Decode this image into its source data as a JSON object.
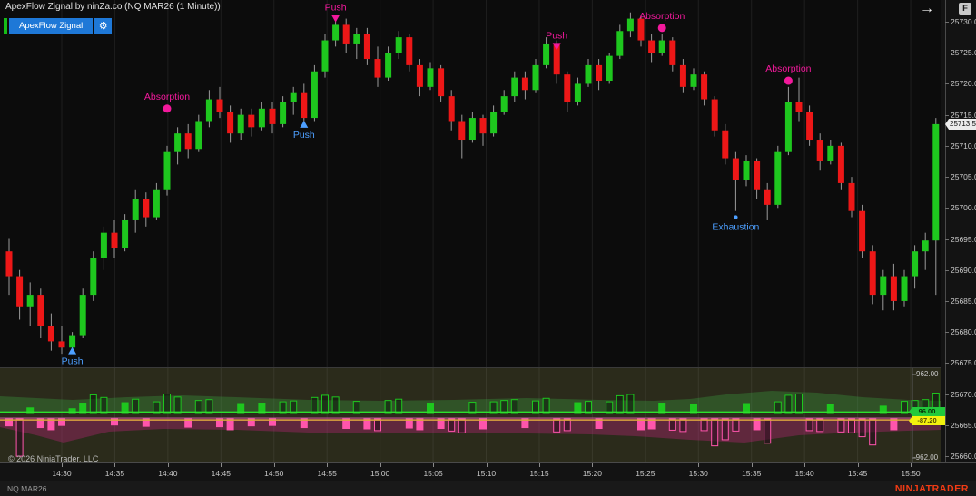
{
  "window": {
    "title": "ApexFlow Zignal by ninZa.co (NQ MAR26 (1 Minute))",
    "arrow_icon": "→",
    "fixed_scale_button": "F"
  },
  "toolbar": {
    "indicator_button": "ApexFlow Zignal",
    "gear_icon": "⚙"
  },
  "footer_note": "© 2026 NinjaTrader, LLC",
  "status_bar": {
    "instrument": "NQ MAR26",
    "brand": "NINJATRADER",
    "brand_color": "#F23B14"
  },
  "price_axis": {
    "ticks": [
      "25730.00",
      "25725.00",
      "25720.00",
      "25715.00",
      "25710.00",
      "25705.00",
      "25700.00",
      "25695.00",
      "25690.00",
      "25685.00",
      "25680.00",
      "25675.00",
      "25670.00",
      "25665.00",
      "25660.00"
    ],
    "last_price_label": "25713.50"
  },
  "time_axis": {
    "ticks": [
      "14:30",
      "14:35",
      "14:40",
      "14:45",
      "14:50",
      "14:55",
      "15:00",
      "15:05",
      "15:10",
      "15:15",
      "15:20",
      "15:25",
      "15:30",
      "15:35",
      "15:40",
      "15:45",
      "15:50"
    ]
  },
  "lower_panel": {
    "scale_max_label": "962.00",
    "scale_min_label": "-962.00",
    "green_value_label": "96.00",
    "yellow_value_label": "-87.20"
  },
  "chart_data": {
    "type": "candlestick",
    "title": "ApexFlow Zignal by ninZa.co",
    "instrument": "NQ MAR26",
    "interval": "1 Minute",
    "first_bar_time": "14:25",
    "price_range": [
      25660,
      25730
    ],
    "lower_range": [
      -962,
      962
    ],
    "colors": {
      "up": "#1EC71E",
      "down": "#ED1717",
      "pink": "#FF55AC",
      "blue": "#4D9FFF",
      "magenta": "#F3199C",
      "green_line": "#2DE12D",
      "orange_line": "#DCA43F"
    },
    "candles": [
      [
        25693,
        25695,
        25686,
        25689
      ],
      [
        25689,
        25690,
        25682,
        25684
      ],
      [
        25684,
        25688,
        25681,
        25686
      ],
      [
        25686,
        25687,
        25679,
        25681
      ],
      [
        25681,
        25683,
        25677,
        25678.5
      ],
      [
        25678.5,
        25681,
        25676.5,
        25677.5
      ],
      [
        25677.5,
        25680,
        25676.75,
        25679.5
      ],
      [
        25679.5,
        25687,
        25679,
        25686
      ],
      [
        25686,
        25693,
        25685,
        25692
      ],
      [
        25692,
        25697,
        25690,
        25696
      ],
      [
        25696,
        25698,
        25692,
        25693.5
      ],
      [
        25693.5,
        25699,
        25693,
        25698
      ],
      [
        25698,
        25703,
        25696,
        25701.5
      ],
      [
        25701.5,
        25702.5,
        25697,
        25698.5
      ],
      [
        25698.5,
        25704,
        25698,
        25703
      ],
      [
        25703,
        25710,
        25702,
        25709
      ],
      [
        25709,
        25713,
        25707,
        25712
      ],
      [
        25712,
        25713.5,
        25708,
        25709.5
      ],
      [
        25709.5,
        25715,
        25709,
        25714
      ],
      [
        25714,
        25719,
        25713,
        25717.5
      ],
      [
        25717.5,
        25719.5,
        25714.5,
        25715.5
      ],
      [
        25715.5,
        25716.5,
        25710.5,
        25712
      ],
      [
        25712,
        25716,
        25711,
        25715
      ],
      [
        25715,
        25716,
        25711.5,
        25713
      ],
      [
        25713,
        25717,
        25712.5,
        25716
      ],
      [
        25716,
        25717,
        25712,
        25713.5
      ],
      [
        25713.5,
        25718,
        25713,
        25717
      ],
      [
        25717,
        25719.5,
        25715,
        25718.5
      ],
      [
        25718.5,
        25720,
        25713,
        25714.5
      ],
      [
        25714.5,
        25723,
        25714,
        25722
      ],
      [
        25722,
        25728,
        25721,
        25727
      ],
      [
        25727,
        25731,
        25726,
        25729.5
      ],
      [
        25729.5,
        25730.5,
        25725,
        25726.5
      ],
      [
        25726.5,
        25729,
        25724,
        25728
      ],
      [
        25728,
        25729,
        25723,
        25724
      ],
      [
        25724,
        25726,
        25719.5,
        25721
      ],
      [
        25721,
        25726,
        25720.5,
        25725
      ],
      [
        25725,
        25728.5,
        25724,
        25727.5
      ],
      [
        25727.5,
        25728,
        25722,
        25723
      ],
      [
        25723,
        25724,
        25718,
        25719.5
      ],
      [
        25719.5,
        25723.5,
        25719,
        25722.5
      ],
      [
        25722.5,
        25723,
        25717,
        25718
      ],
      [
        25718,
        25719,
        25712.5,
        25714
      ],
      [
        25714,
        25715,
        25708,
        25711
      ],
      [
        25711,
        25715.5,
        25710.5,
        25714.5
      ],
      [
        25714.5,
        25715,
        25710,
        25712
      ],
      [
        25712,
        25716.5,
        25711.5,
        25715.5
      ],
      [
        25715.5,
        25719,
        25715,
        25718
      ],
      [
        25718,
        25722,
        25717,
        25721
      ],
      [
        25721,
        25722,
        25717.5,
        25719
      ],
      [
        25719,
        25724,
        25718.5,
        25723
      ],
      [
        25723,
        25727.5,
        25722.5,
        25726.5
      ],
      [
        25726.5,
        25727,
        25720,
        25721.5
      ],
      [
        25721.5,
        25722,
        25715.5,
        25717
      ],
      [
        25717,
        25721,
        25716.5,
        25720
      ],
      [
        25720,
        25724,
        25719.5,
        25723
      ],
      [
        25723,
        25724,
        25719,
        25720.5
      ],
      [
        25720.5,
        25725,
        25720,
        25724.5
      ],
      [
        25724.5,
        25729.5,
        25724,
        25728.5
      ],
      [
        25728.5,
        25731.5,
        25727.5,
        25730.5
      ],
      [
        25730.5,
        25731,
        25726,
        25727
      ],
      [
        25727,
        25728,
        25723.5,
        25725
      ],
      [
        25725,
        25728,
        25724.5,
        25727
      ],
      [
        25727,
        25727.5,
        25722,
        25723
      ],
      [
        25723,
        25724,
        25718.5,
        25719.5
      ],
      [
        25719.5,
        25722.5,
        25719,
        25721.5
      ],
      [
        25721.5,
        25722,
        25716.5,
        25717.5
      ],
      [
        25717.5,
        25718,
        25711.5,
        25712.5
      ],
      [
        25712.5,
        25713.5,
        25707,
        25708
      ],
      [
        25708,
        25709,
        25699.5,
        25704.5
      ],
      [
        25704.5,
        25708.5,
        25703.5,
        25707.5
      ],
      [
        25707.5,
        25708,
        25701.5,
        25703
      ],
      [
        25703,
        25704,
        25698,
        25700.5
      ],
      [
        25700.5,
        25710,
        25700,
        25709
      ],
      [
        25709,
        25719.5,
        25708.5,
        25717
      ],
      [
        25717,
        25721,
        25714,
        25715.5
      ],
      [
        25715.5,
        25716.5,
        25710,
        25711
      ],
      [
        25711,
        25712,
        25706,
        25707.5
      ],
      [
        25707.5,
        25711,
        25707,
        25710
      ],
      [
        25710,
        25710.5,
        25703,
        25704
      ],
      [
        25704,
        25705,
        25698.5,
        25699.5
      ],
      [
        25699.5,
        25700.5,
        25692,
        25693
      ],
      [
        25693,
        25694,
        25684.5,
        25686
      ],
      [
        25686,
        25690,
        25683.5,
        25689
      ],
      [
        25689,
        25691,
        25683.5,
        25685
      ],
      [
        25685,
        25690,
        25684,
        25689
      ],
      [
        25689,
        25694,
        25687,
        25693
      ],
      [
        25693,
        25696,
        25690,
        25694.75
      ],
      [
        25694.75,
        25714.5,
        25686,
        25713.5
      ]
    ],
    "delta_bars": [
      -160,
      -860,
      130,
      -200,
      -250,
      -150,
      110,
      240,
      430,
      370,
      -140,
      250,
      330,
      -170,
      270,
      450,
      380,
      -190,
      300,
      320,
      -180,
      -250,
      230,
      -160,
      240,
      -150,
      270,
      290,
      -200,
      370,
      420,
      380,
      -220,
      280,
      -230,
      -270,
      300,
      330,
      -210,
      -250,
      240,
      -220,
      -280,
      -320,
      260,
      -230,
      270,
      300,
      320,
      -200,
      290,
      350,
      -300,
      -270,
      250,
      280,
      -220,
      270,
      410,
      440,
      -250,
      -230,
      240,
      -260,
      -290,
      220,
      -270,
      -620,
      -480,
      -280,
      230,
      -250,
      -560,
      270,
      420,
      450,
      -270,
      -290,
      210,
      -300,
      -320,
      -410,
      -600,
      170,
      -250,
      280,
      300,
      320,
      470
    ],
    "annotations": [
      {
        "label": "Push",
        "bar": 6,
        "price": 25677,
        "marker": "triangle-up",
        "placement": "below",
        "color": "#4D9FFF"
      },
      {
        "label": "Absorption",
        "bar": 15,
        "price": 25716,
        "marker": "dot",
        "placement": "above",
        "color": "#F3199C"
      },
      {
        "label": "Push",
        "bar": 28,
        "price": 25713.5,
        "marker": "triangle-up",
        "placement": "below",
        "color": "#4D9FFF"
      },
      {
        "label": "Push",
        "bar": 31,
        "price": 25730.5,
        "marker": "triangle-down",
        "placement": "above",
        "color": "#F3199C"
      },
      {
        "label": "Push",
        "bar": 52,
        "price": 25726,
        "marker": "triangle-down",
        "placement": "above",
        "color": "#F3199C"
      },
      {
        "label": "Absorption",
        "bar": 62,
        "price": 25729,
        "marker": "dot",
        "placement": "above",
        "color": "#F3199C"
      },
      {
        "label": "Exhaustion",
        "bar": 69,
        "price": 25698.5,
        "marker": "dot",
        "placement": "below",
        "color": "#4D9FFF"
      },
      {
        "label": "Absorption",
        "bar": 74,
        "price": 25720.5,
        "marker": "dot",
        "placement": "above",
        "color": "#F3199C"
      }
    ],
    "bands": {
      "green_band": [
        [
          0,
          437
        ],
        [
          80,
          441
        ],
        [
          140,
          438
        ],
        [
          200,
          436
        ],
        [
          260,
          438
        ],
        [
          340,
          441
        ],
        [
          420,
          442
        ],
        [
          500,
          441
        ],
        [
          580,
          439
        ],
        [
          660,
          441
        ],
        [
          720,
          442
        ],
        [
          760,
          440
        ],
        [
          800,
          435
        ],
        [
          850,
          431
        ],
        [
          900,
          433
        ],
        [
          950,
          438
        ],
        [
          1000,
          441
        ],
        [
          1037,
          442
        ]
      ],
      "pink_band": [
        [
          0,
          471
        ],
        [
          40,
          480
        ],
        [
          70,
          488
        ],
        [
          120,
          476
        ],
        [
          180,
          473
        ],
        [
          260,
          474
        ],
        [
          340,
          477
        ],
        [
          420,
          478
        ],
        [
          500,
          477
        ],
        [
          580,
          478
        ],
        [
          650,
          479
        ],
        [
          700,
          481
        ],
        [
          760,
          485
        ],
        [
          820,
          488
        ],
        [
          880,
          480
        ],
        [
          940,
          477
        ],
        [
          1000,
          475
        ],
        [
          1037,
          474
        ]
      ]
    }
  }
}
